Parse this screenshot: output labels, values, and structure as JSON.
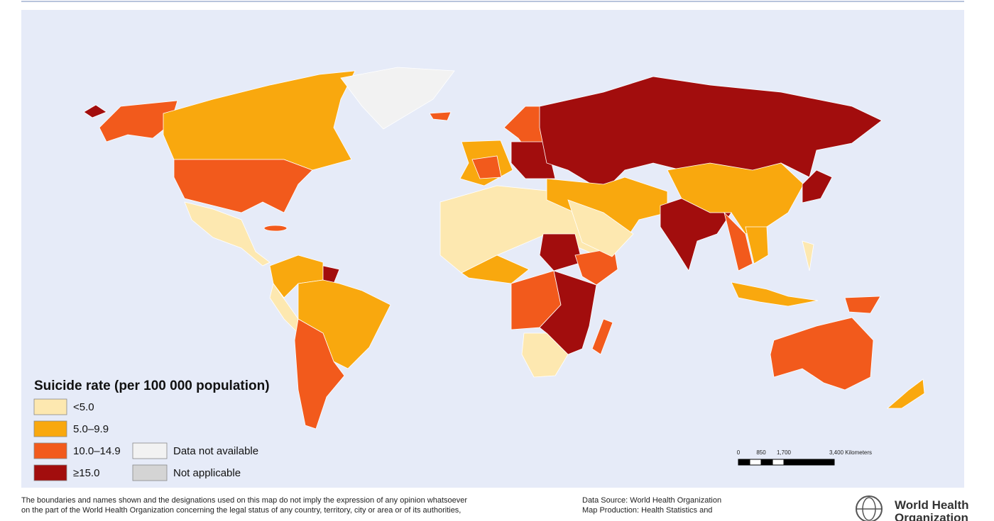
{
  "legend": {
    "title": "Suicide rate (per 100 000 population)",
    "items": [
      {
        "label": "<5.0",
        "color": "#fde8b0"
      },
      {
        "label": "5.0–9.9",
        "color": "#f9a80e"
      },
      {
        "label": "10.0–14.9",
        "color": "#f25a1c"
      },
      {
        "label": "≥15.0",
        "color": "#a20d0d"
      },
      {
        "label": "Data not available",
        "color": "#f2f2f2"
      },
      {
        "label": "Not applicable",
        "color": "#d4d4d4"
      }
    ]
  },
  "scale_bar": {
    "labels": [
      "0",
      "850",
      "1,700",
      "3,400 Kilometers"
    ]
  },
  "disclaimer": [
    "The boundaries and names shown and the designations used on this map do not imply the expression of any opinion whatsoever",
    "on the part of the World Health Organization concerning the legal status of any country, territory, city or area or of its authorities,"
  ],
  "credits": [
    "Data Source: World Health Organization",
    "Map Production: Health Statistics and"
  ],
  "logo": [
    "World Health",
    "Organization"
  ]
}
